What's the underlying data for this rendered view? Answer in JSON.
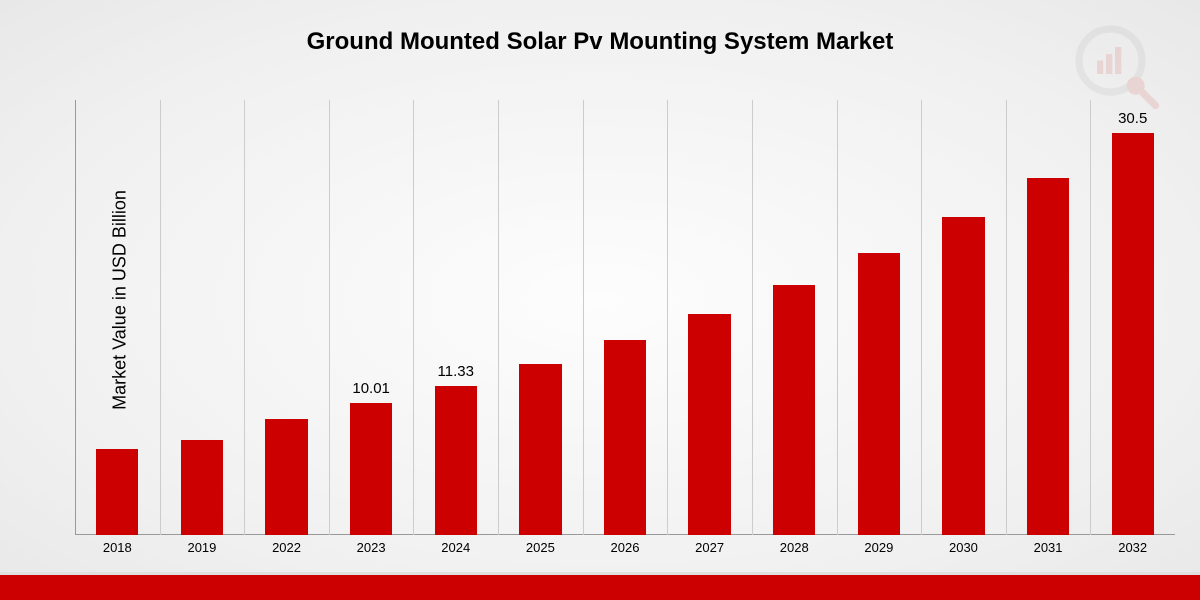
{
  "chart": {
    "type": "bar",
    "title": "Ground Mounted Solar Pv Mounting System Market",
    "ylabel": "Market Value in USD Billion",
    "title_fontsize": 24,
    "ylabel_fontsize": 18,
    "categories": [
      "2018",
      "2019",
      "2022",
      "2023",
      "2024",
      "2025",
      "2026",
      "2027",
      "2028",
      "2029",
      "2030",
      "2031",
      "2032"
    ],
    "values": [
      6.5,
      7.2,
      8.8,
      10.01,
      11.33,
      13.0,
      14.8,
      16.8,
      19.0,
      21.4,
      24.1,
      27.1,
      30.5
    ],
    "data_labels": {
      "3": "10.01",
      "4": "11.33",
      "12": "30.5"
    },
    "bar_color": "#cc0000",
    "grid_color": "#cccccc",
    "axis_color": "#999999",
    "background": "radial-gradient(#fdfdfd, #e8e8e8)",
    "ylim": [
      0,
      33
    ],
    "bar_width_ratio": 0.5,
    "label_fontsize": 15,
    "tick_fontsize": 13,
    "footer_color": "#cc0000",
    "watermark_colors": {
      "ring": "#888888",
      "bars": "#cc0000",
      "lens": "#cc0000"
    }
  }
}
